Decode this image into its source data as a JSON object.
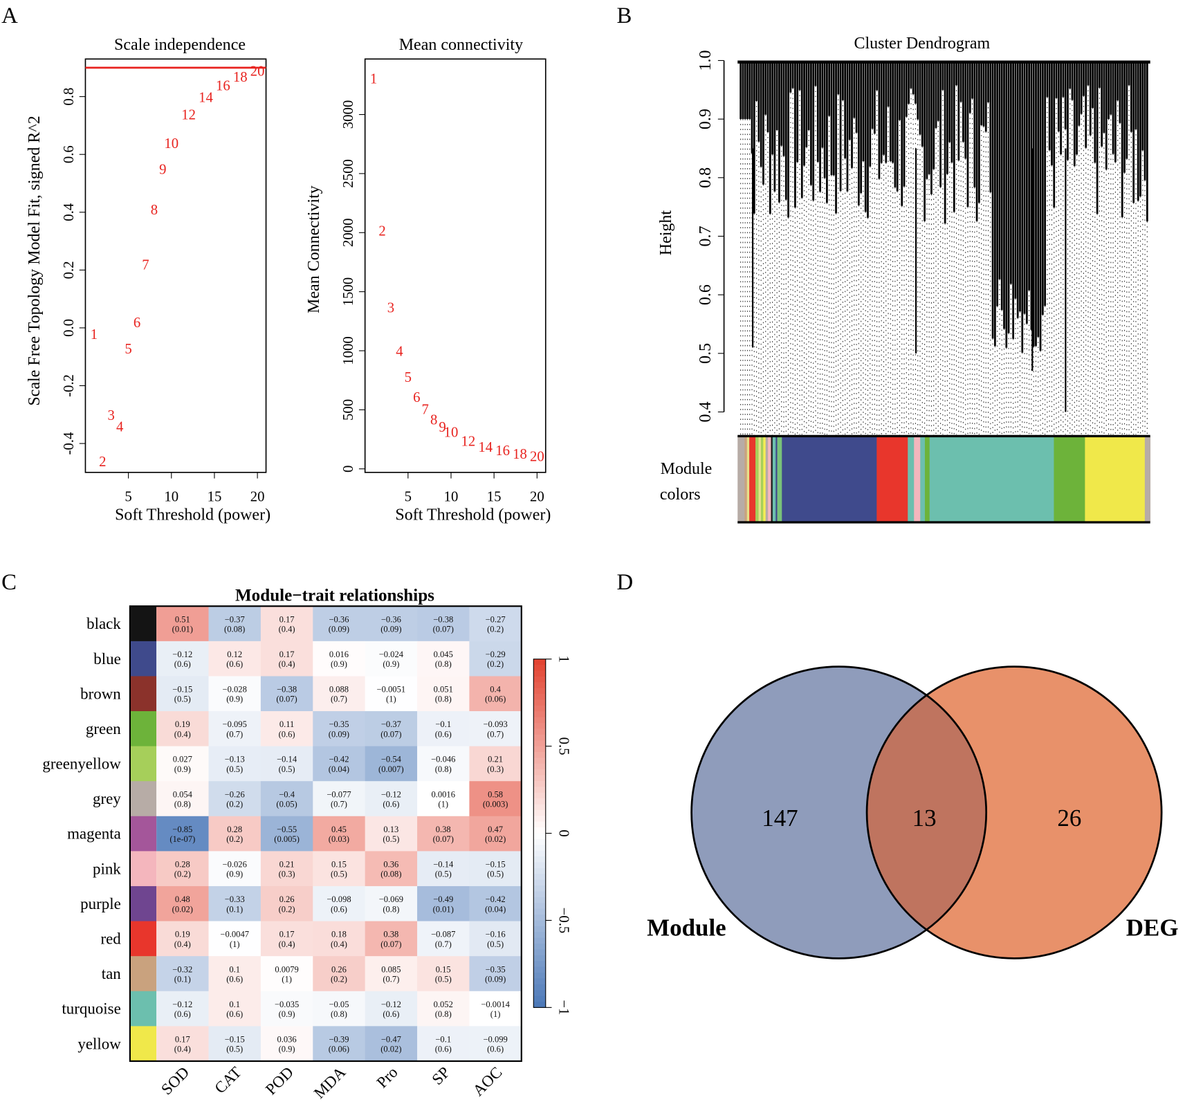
{
  "panels": {
    "a": "A",
    "b": "B",
    "c": "C",
    "d": "D"
  },
  "chart_data": [
    {
      "id": "scale-independence",
      "type": "scatter",
      "title": "Scale independence",
      "xlabel": "Soft Threshold (power)",
      "ylabel": "Scale Free Topology Model Fit, signed R^2",
      "xlim": [
        0,
        21
      ],
      "ylim": [
        -0.5,
        0.93
      ],
      "xticks": [
        5,
        10,
        15,
        20
      ],
      "yticks": [
        -0.4,
        -0.2,
        0.0,
        0.2,
        0.4,
        0.6,
        0.8
      ],
      "ytick_labels": [
        "-0.4",
        "-0.2",
        "0.0",
        "0.2",
        "0.4",
        "0.6",
        "0.8"
      ],
      "threshold_line": 0.9,
      "threshold_color": "#e8231f",
      "x": [
        1,
        2,
        3,
        4,
        5,
        6,
        7,
        8,
        9,
        10,
        12,
        14,
        16,
        18,
        20
      ],
      "y": [
        -0.02,
        -0.46,
        -0.3,
        -0.34,
        -0.07,
        0.02,
        0.22,
        0.41,
        0.55,
        0.64,
        0.74,
        0.8,
        0.84,
        0.87,
        0.89
      ],
      "labels": [
        "1",
        "2",
        "3",
        "4",
        "5",
        "6",
        "7",
        "8",
        "9",
        "10",
        "12",
        "14",
        "16",
        "18",
        "20"
      ]
    },
    {
      "id": "mean-connectivity",
      "type": "scatter",
      "title": "Mean connectivity",
      "xlabel": "Soft Threshold (power)",
      "ylabel": "Mean Connectivity",
      "xlim": [
        0,
        21
      ],
      "ylim": [
        -30,
        3470
      ],
      "xticks": [
        5,
        10,
        15,
        20
      ],
      "yticks": [
        0,
        500,
        1000,
        1500,
        2000,
        2500,
        3000
      ],
      "ytick_labels": [
        "0",
        "500",
        "1000",
        "1500",
        "2000",
        "2500",
        "3000"
      ],
      "x": [
        1,
        2,
        3,
        4,
        5,
        6,
        7,
        8,
        9,
        10,
        12,
        14,
        16,
        18,
        20
      ],
      "y": [
        3310,
        2020,
        1370,
        1000,
        780,
        610,
        510,
        420,
        360,
        315,
        240,
        190,
        160,
        130,
        110
      ],
      "labels": [
        "1",
        "2",
        "3",
        "4",
        "5",
        "6",
        "7",
        "8",
        "9",
        "10",
        "12",
        "14",
        "16",
        "18",
        "20"
      ]
    },
    {
      "id": "cluster-dendrogram",
      "type": "dendrogram",
      "title": "Cluster Dendrogram",
      "ylabel": "Height",
      "ylim": [
        0.4,
        1.0
      ],
      "yticks": [
        0.4,
        0.5,
        0.6,
        0.7,
        0.8,
        0.9,
        1.0
      ],
      "ytick_labels": [
        "0.4",
        "0.5",
        "0.6",
        "0.7",
        "0.8",
        "0.9",
        "1.0"
      ],
      "module_label": [
        "Module",
        "colors"
      ],
      "module_segments": [
        {
          "color": "#b7aca6",
          "weight": 9
        },
        {
          "color": "#c9a27e",
          "weight": 3
        },
        {
          "color": "#e6e08a",
          "weight": 3
        },
        {
          "color": "#e8362c",
          "weight": 8
        },
        {
          "color": "#a6cf5a",
          "weight": 4
        },
        {
          "color": "#e6e08a",
          "weight": 3
        },
        {
          "color": "#a6cf5a",
          "weight": 3
        },
        {
          "color": "#f5ed55",
          "weight": 3
        },
        {
          "color": "#b7aca6",
          "weight": 3
        },
        {
          "color": "#f4b6bd",
          "weight": 4
        },
        {
          "color": "#1a1a1a",
          "weight": 2
        },
        {
          "color": "#6cbfae",
          "weight": 4
        },
        {
          "color": "#3f4a8c",
          "weight": 2
        },
        {
          "color": "#7ac27a",
          "weight": 6
        },
        {
          "color": "#3f4a8c",
          "weight": 122
        },
        {
          "color": "#e8362c",
          "weight": 40
        },
        {
          "color": "#6cbfae",
          "weight": 8
        },
        {
          "color": "#f4b6bd",
          "weight": 8
        },
        {
          "color": "#6cbfae",
          "weight": 6
        },
        {
          "color": "#6db33a",
          "weight": 6
        },
        {
          "color": "#6cbfae",
          "weight": 160
        },
        {
          "color": "#6db33a",
          "weight": 40
        },
        {
          "color": "#f0e84a",
          "weight": 77
        },
        {
          "color": "#b7aca6",
          "weight": 7
        }
      ]
    },
    {
      "id": "module-trait-relationships",
      "type": "heatmap",
      "title": "Module−trait relationships",
      "columns": [
        "SOD",
        "CAT",
        "POD",
        "MDA",
        "Pro",
        "SP",
        "AOC"
      ],
      "rows": [
        {
          "name": "black",
          "color": "#141414",
          "r": [
            0.51,
            -0.37,
            0.17,
            -0.36,
            -0.36,
            -0.38,
            -0.27
          ],
          "p": [
            "0.01",
            "0.08",
            "0.4",
            "0.09",
            "0.09",
            "0.07",
            "0.2"
          ]
        },
        {
          "name": "blue",
          "color": "#3f4a8c",
          "r": [
            -0.12,
            0.12,
            0.17,
            0.016,
            -0.024,
            0.045,
            -0.29
          ],
          "p": [
            "0.6",
            "0.6",
            "0.4",
            "0.9",
            "0.9",
            "0.8",
            "0.2"
          ]
        },
        {
          "name": "brown",
          "color": "#8b322b",
          "r": [
            -0.15,
            -0.028,
            -0.38,
            0.088,
            -0.0051,
            0.051,
            0.4
          ],
          "p": [
            "0.5",
            "0.9",
            "0.07",
            "0.7",
            "1",
            "0.8",
            "0.06"
          ]
        },
        {
          "name": "green",
          "color": "#6db33a",
          "r": [
            0.19,
            -0.095,
            0.11,
            -0.35,
            -0.37,
            -0.1,
            -0.093
          ],
          "p": [
            "0.4",
            "0.7",
            "0.6",
            "0.09",
            "0.07",
            "0.6",
            "0.7"
          ]
        },
        {
          "name": "greenyellow",
          "color": "#a6cf5a",
          "r": [
            0.027,
            -0.13,
            -0.14,
            -0.42,
            -0.54,
            -0.046,
            0.21
          ],
          "p": [
            "0.9",
            "0.5",
            "0.5",
            "0.04",
            "0.007",
            "0.8",
            "0.3"
          ]
        },
        {
          "name": "grey",
          "color": "#b7aca6",
          "r": [
            0.054,
            -0.26,
            -0.4,
            -0.077,
            -0.12,
            0.0016,
            0.58
          ],
          "p": [
            "0.8",
            "0.2",
            "0.05",
            "0.7",
            "0.6",
            "1",
            "0.003"
          ]
        },
        {
          "name": "magenta",
          "color": "#a4569a",
          "r": [
            -0.85,
            0.28,
            -0.55,
            0.45,
            0.13,
            0.38,
            0.47
          ],
          "p": [
            "1e-07",
            "0.2",
            "0.005",
            "0.03",
            "0.5",
            "0.07",
            "0.02"
          ]
        },
        {
          "name": "pink",
          "color": "#f4b6bd",
          "r": [
            0.28,
            -0.026,
            0.21,
            0.15,
            0.36,
            -0.14,
            -0.15
          ],
          "p": [
            "0.2",
            "0.9",
            "0.3",
            "0.5",
            "0.08",
            "0.5",
            "0.5"
          ]
        },
        {
          "name": "purple",
          "color": "#6f4590",
          "r": [
            0.48,
            -0.33,
            0.26,
            -0.098,
            -0.069,
            -0.49,
            -0.42
          ],
          "p": [
            "0.02",
            "0.1",
            "0.2",
            "0.6",
            "0.8",
            "0.01",
            "0.04"
          ]
        },
        {
          "name": "red",
          "color": "#e8362c",
          "r": [
            0.19,
            -0.0047,
            0.17,
            0.18,
            0.38,
            -0.087,
            -0.16
          ],
          "p": [
            "0.4",
            "1",
            "0.4",
            "0.4",
            "0.07",
            "0.7",
            "0.5"
          ]
        },
        {
          "name": "tan",
          "color": "#c9a27e",
          "r": [
            -0.32,
            0.1,
            0.0079,
            0.26,
            0.085,
            0.15,
            -0.35
          ],
          "p": [
            "0.1",
            "0.6",
            "1",
            "0.2",
            "0.7",
            "0.5",
            "0.09"
          ]
        },
        {
          "name": "turquoise",
          "color": "#6cbfae",
          "r": [
            -0.12,
            0.1,
            -0.035,
            -0.05,
            -0.12,
            0.052,
            -0.0014
          ],
          "p": [
            "0.6",
            "0.6",
            "0.9",
            "0.8",
            "0.6",
            "0.8",
            "1"
          ]
        },
        {
          "name": "yellow",
          "color": "#f0e84a",
          "r": [
            0.17,
            -0.15,
            0.036,
            -0.39,
            -0.47,
            -0.1,
            -0.099
          ],
          "p": [
            "0.4",
            "0.5",
            "0.9",
            "0.06",
            "0.02",
            "0.6",
            "0.6"
          ]
        }
      ],
      "scale_ticks": [
        1,
        0.5,
        0,
        -0.5,
        -1
      ],
      "scale_tick_labels": [
        "1",
        "0.5",
        "0",
        "−0.5",
        "−1"
      ],
      "scale_range": [
        -1,
        1
      ],
      "low_color": "#4a77b7",
      "mid_color": "#ffffff",
      "high_color": "#e2412f"
    },
    {
      "id": "venn",
      "type": "venn",
      "sets": [
        {
          "name": "Module",
          "only": "147",
          "color": "#8f9cbb"
        },
        {
          "name": "DEG",
          "only": "26",
          "color": "#e8916a"
        }
      ],
      "intersection": "13",
      "intersection_color": "#bf745f"
    }
  ]
}
